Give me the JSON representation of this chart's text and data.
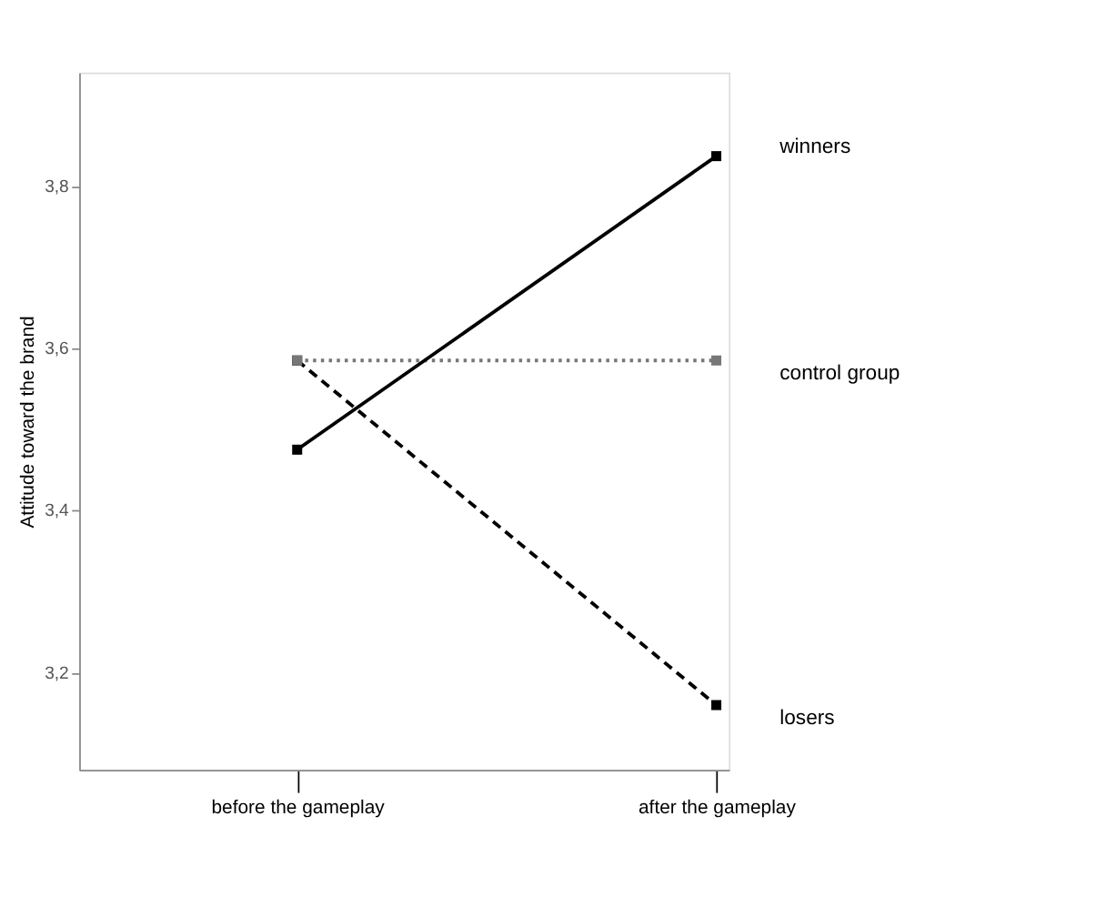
{
  "chart_data": {
    "type": "line",
    "ylabel": "Attitude toward the brand",
    "categories": [
      "before the gameplay",
      "after the gameplay"
    ],
    "series": [
      {
        "name": "winners",
        "color": "#000000",
        "values": [
          3.475,
          3.837
        ],
        "line_style": "solid"
      },
      {
        "name": "control group",
        "color": "#777777",
        "values": [
          3.585,
          3.585
        ],
        "line_style": "dotted"
      },
      {
        "name": "losers",
        "color": "#000000",
        "values": [
          3.585,
          3.16
        ],
        "line_style": "dashed"
      }
    ],
    "ylim": [
      3.08,
      3.94
    ],
    "yticks": [
      {
        "value": 3.2,
        "label": "3,2"
      },
      {
        "value": 3.4,
        "label": "3,4"
      },
      {
        "value": 3.6,
        "label": "3,6"
      },
      {
        "value": 3.8,
        "label": "3,8"
      }
    ],
    "marker": "square",
    "grid": false
  }
}
